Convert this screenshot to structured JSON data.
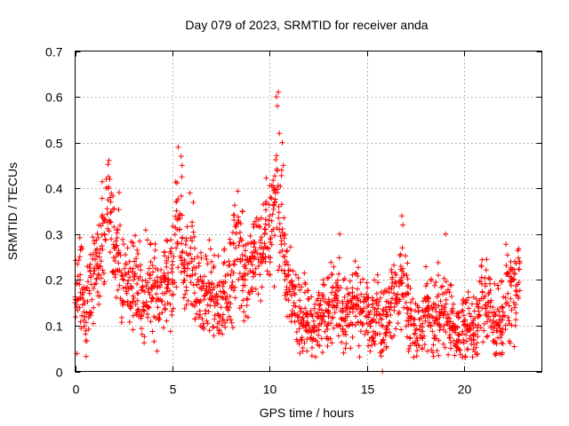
{
  "chart_data": {
    "type": "scatter",
    "title": "Day 079 of 2023, SRMTID for receiver anda",
    "xlabel": "GPS time / hours",
    "ylabel": "SRMTID / TECUs",
    "xlim": [
      0,
      24
    ],
    "ylim": [
      0,
      0.7
    ],
    "xticks": [
      0,
      5,
      10,
      15,
      20
    ],
    "xtick_labels": [
      "0",
      "5",
      "10",
      "15",
      "20"
    ],
    "yticks": [
      0,
      0.1,
      0.2,
      0.3,
      0.4,
      0.5,
      0.6,
      0.7
    ],
    "ytick_labels": [
      "0",
      "0.1",
      "0.2",
      "0.3",
      "0.4",
      "0.5",
      "0.6",
      "0.7"
    ],
    "grid": true,
    "marker": "+",
    "color": "#ff0000",
    "series": [
      {
        "name": "SRMTID",
        "x": [
          0.0,
          0.25,
          0.5,
          0.75,
          1.0,
          1.25,
          1.5,
          1.75,
          2.0,
          2.25,
          2.5,
          2.75,
          3.0,
          3.25,
          3.5,
          3.75,
          4.0,
          4.25,
          4.5,
          4.75,
          5.0,
          5.25,
          5.5,
          5.75,
          6.0,
          6.25,
          6.5,
          6.75,
          7.0,
          7.25,
          7.5,
          7.75,
          8.0,
          8.25,
          8.5,
          8.75,
          9.0,
          9.25,
          9.5,
          9.75,
          10.0,
          10.25,
          10.5,
          10.75,
          11.0,
          11.25,
          11.5,
          11.75,
          12.0,
          12.25,
          12.5,
          12.75,
          13.0,
          13.25,
          13.5,
          13.75,
          14.0,
          14.25,
          14.5,
          14.75,
          15.0,
          15.25,
          15.5,
          15.75,
          16.0,
          16.25,
          16.5,
          16.75,
          17.0,
          17.25,
          17.5,
          17.75,
          18.0,
          18.25,
          18.5,
          18.75,
          19.0,
          19.25,
          19.5,
          19.75,
          20.0,
          20.25,
          20.5,
          20.75,
          21.0,
          21.25,
          21.5,
          21.75,
          22.0,
          22.25,
          22.5,
          22.75
        ],
        "y": [
          0.15,
          0.2,
          0.12,
          0.17,
          0.22,
          0.25,
          0.3,
          0.33,
          0.27,
          0.26,
          0.2,
          0.18,
          0.2,
          0.17,
          0.15,
          0.18,
          0.16,
          0.14,
          0.17,
          0.19,
          0.2,
          0.31,
          0.26,
          0.21,
          0.24,
          0.19,
          0.18,
          0.17,
          0.19,
          0.15,
          0.14,
          0.16,
          0.21,
          0.27,
          0.24,
          0.2,
          0.22,
          0.25,
          0.27,
          0.3,
          0.34,
          0.37,
          0.31,
          0.22,
          0.18,
          0.15,
          0.12,
          0.11,
          0.1,
          0.09,
          0.1,
          0.12,
          0.13,
          0.14,
          0.15,
          0.13,
          0.12,
          0.14,
          0.16,
          0.13,
          0.12,
          0.11,
          0.13,
          0.1,
          0.12,
          0.14,
          0.16,
          0.2,
          0.17,
          0.12,
          0.09,
          0.1,
          0.13,
          0.12,
          0.11,
          0.13,
          0.14,
          0.1,
          0.09,
          0.08,
          0.1,
          0.09,
          0.07,
          0.12,
          0.16,
          0.15,
          0.11,
          0.1,
          0.13,
          0.17,
          0.2,
          0.19
        ]
      },
      {
        "name": "SRMTID-outliers",
        "x": [
          1.6,
          1.7,
          1.8,
          5.3,
          5.45,
          5.5,
          5.9,
          10.35,
          10.45,
          10.4,
          10.5,
          10.65,
          10.7,
          16.8,
          16.85,
          8.4,
          8.6,
          13.6,
          19.05,
          22.6,
          15.8
        ],
        "y": [
          0.42,
          0.4,
          0.38,
          0.49,
          0.47,
          0.45,
          0.39,
          0.6,
          0.61,
          0.58,
          0.52,
          0.5,
          0.45,
          0.34,
          0.32,
          0.33,
          0.35,
          0.3,
          0.3,
          0.24,
          0.0
        ]
      }
    ]
  }
}
